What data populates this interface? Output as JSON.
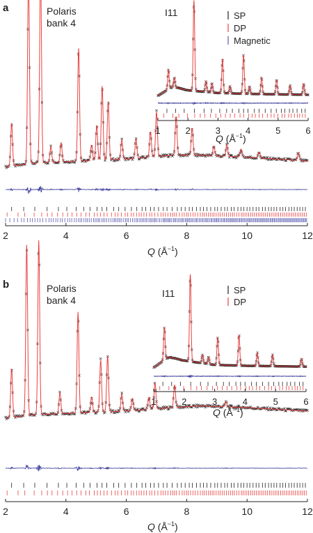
{
  "colors": {
    "observed": "#231f20",
    "calculated": "#e8403f",
    "difference": "#3b3b9a",
    "tick_sp": "#231f20",
    "tick_dp": "#e8403f",
    "tick_magnetic": "#5a5ab0"
  },
  "chart_data": [
    {
      "type": "line",
      "panel_label": "a",
      "annotation_lines": [
        "Polaris",
        "bank 4"
      ],
      "xlabel": "Q (Å−1)",
      "xlabel_main": "Q",
      "xlabel_unit": " (Å",
      "xlabel_sup": "−1",
      "xlabel_close": ")",
      "xlim": [
        2,
        12
      ],
      "xticks": [
        2,
        4,
        6,
        8,
        10,
        12
      ],
      "background": [
        [
          2.0,
          0.18
        ],
        [
          3.0,
          0.2
        ],
        [
          4.5,
          0.21
        ],
        [
          6.0,
          0.22
        ],
        [
          7.5,
          0.24
        ],
        [
          8.5,
          0.24
        ],
        [
          10.0,
          0.23
        ],
        [
          12.0,
          0.21
        ]
      ],
      "peaks": [
        [
          2.2,
          0.22
        ],
        [
          2.76,
          0.97
        ],
        [
          3.16,
          1.0
        ],
        [
          3.5,
          0.08
        ],
        [
          3.84,
          0.1
        ],
        [
          4.42,
          0.58
        ],
        [
          4.85,
          0.08
        ],
        [
          5.02,
          0.18
        ],
        [
          5.2,
          0.38
        ],
        [
          5.4,
          0.3
        ],
        [
          5.85,
          0.1
        ],
        [
          6.32,
          0.1
        ],
        [
          6.8,
          0.13
        ],
        [
          7.0,
          0.23
        ],
        [
          7.65,
          0.2
        ],
        [
          8.18,
          0.14
        ],
        [
          8.9,
          0.05
        ],
        [
          9.33,
          0.06
        ],
        [
          9.8,
          0.04
        ],
        [
          10.4,
          0.03
        ],
        [
          11.7,
          0.04
        ]
      ],
      "tick_rows": [
        "SP",
        "DP",
        "Magnetic"
      ],
      "inset": {
        "label": "I11",
        "legend": [
          "SP",
          "DP",
          "Magnetic"
        ],
        "xlabel_main": "Q",
        "xlabel_unit": " (Å",
        "xlabel_sup": "−1",
        "xlabel_close": ")",
        "xlim": [
          1,
          6
        ],
        "xticks": [
          1,
          2,
          3,
          4,
          5,
          6
        ],
        "peaks": [
          [
            1.35,
            0.22
          ],
          [
            1.55,
            0.1
          ],
          [
            2.2,
            1.0
          ],
          [
            2.6,
            0.12
          ],
          [
            2.8,
            0.1
          ],
          [
            3.15,
            0.38
          ],
          [
            3.4,
            0.08
          ],
          [
            3.85,
            0.43
          ],
          [
            4.05,
            0.08
          ],
          [
            4.45,
            0.18
          ],
          [
            4.95,
            0.16
          ],
          [
            5.4,
            0.1
          ],
          [
            5.85,
            0.12
          ]
        ]
      }
    },
    {
      "type": "line",
      "panel_label": "b",
      "annotation_lines": [
        "Polaris",
        "bank 4"
      ],
      "xlabel": "Q (Å−1)",
      "xlabel_main": "Q",
      "xlabel_unit": " (Å",
      "xlabel_sup": "−1",
      "xlabel_close": ")",
      "xlim": [
        2,
        12
      ],
      "xticks": [
        2,
        4,
        6,
        8,
        10,
        12
      ],
      "background": [
        [
          2.0,
          0.22
        ],
        [
          3.0,
          0.24
        ],
        [
          4.5,
          0.25
        ],
        [
          6.0,
          0.26
        ],
        [
          7.5,
          0.28
        ],
        [
          8.5,
          0.29
        ],
        [
          10.0,
          0.28
        ],
        [
          12.0,
          0.26
        ]
      ],
      "peaks": [
        [
          2.2,
          0.28
        ],
        [
          2.7,
          0.98
        ],
        [
          3.1,
          1.0
        ],
        [
          3.8,
          0.12
        ],
        [
          4.4,
          0.58
        ],
        [
          4.85,
          0.09
        ],
        [
          5.15,
          0.3
        ],
        [
          5.38,
          0.32
        ],
        [
          5.85,
          0.1
        ],
        [
          6.2,
          0.07
        ],
        [
          6.75,
          0.07
        ],
        [
          6.95,
          0.15
        ],
        [
          7.6,
          0.13
        ],
        [
          9.3,
          0.03
        ]
      ],
      "tick_rows": [
        "SP",
        "DP"
      ],
      "inset": {
        "label": "I11",
        "legend": [
          "SP",
          "DP"
        ],
        "xlabel_main": "Q",
        "xlabel_unit": " (Å",
        "xlabel_sup": "−1",
        "xlabel_close": ")",
        "xlim": [
          1,
          6
        ],
        "xticks": [
          1,
          2,
          3,
          4,
          5,
          6
        ],
        "peaks": [
          [
            1.35,
            0.38
          ],
          [
            2.2,
            1.0
          ],
          [
            2.6,
            0.1
          ],
          [
            2.8,
            0.08
          ],
          [
            3.1,
            0.32
          ],
          [
            3.8,
            0.35
          ],
          [
            4.4,
            0.15
          ],
          [
            4.9,
            0.13
          ],
          [
            5.85,
            0.09
          ]
        ]
      }
    }
  ]
}
